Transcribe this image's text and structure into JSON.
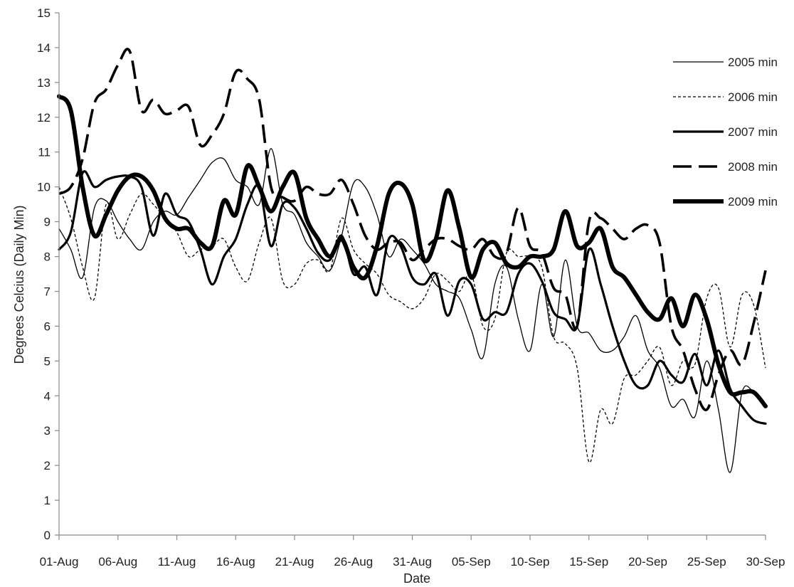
{
  "chart_data": {
    "type": "line",
    "xlabel": "Date",
    "ylabel": "Degrees Celcius (Daily Min)",
    "ylim": [
      0,
      15
    ],
    "xlim": [
      "01-Aug",
      "30-Sep"
    ],
    "y_ticks": [
      0,
      1,
      2,
      3,
      4,
      5,
      6,
      7,
      8,
      9,
      10,
      11,
      12,
      13,
      14,
      15
    ],
    "x_tick_labels": [
      "01-Aug",
      "06-Aug",
      "11-Aug",
      "16-Aug",
      "21-Aug",
      "26-Aug",
      "31-Aug",
      "05-Sep",
      "10-Sep",
      "15-Sep",
      "20-Sep",
      "25-Sep",
      "30-Sep"
    ],
    "grid": false,
    "legend_position": "right",
    "x_dates": [
      "01-Aug",
      "02-Aug",
      "03-Aug",
      "04-Aug",
      "05-Aug",
      "06-Aug",
      "07-Aug",
      "08-Aug",
      "09-Aug",
      "10-Aug",
      "11-Aug",
      "12-Aug",
      "13-Aug",
      "14-Aug",
      "15-Aug",
      "16-Aug",
      "17-Aug",
      "18-Aug",
      "19-Aug",
      "20-Aug",
      "21-Aug",
      "22-Aug",
      "23-Aug",
      "24-Aug",
      "25-Aug",
      "26-Aug",
      "27-Aug",
      "28-Aug",
      "29-Aug",
      "30-Aug",
      "31-Aug",
      "01-Sep",
      "02-Sep",
      "03-Sep",
      "04-Sep",
      "05-Sep",
      "06-Sep",
      "07-Sep",
      "08-Sep",
      "09-Sep",
      "10-Sep",
      "11-Sep",
      "12-Sep",
      "13-Sep",
      "14-Sep",
      "15-Sep",
      "16-Sep",
      "17-Sep",
      "18-Sep",
      "19-Sep",
      "20-Sep",
      "21-Sep",
      "22-Sep",
      "23-Sep",
      "24-Sep",
      "25-Sep",
      "26-Sep",
      "27-Sep",
      "28-Sep",
      "29-Sep",
      "30-Sep"
    ],
    "series": [
      {
        "name": "2005 min",
        "color": "#000000",
        "values": [
          8.8,
          8.2,
          7.4,
          9.4,
          9.6,
          9.0,
          8.5,
          8.2,
          9.0,
          9.3,
          9.2,
          9.7,
          10.2,
          10.7,
          10.8,
          10.2,
          10.0,
          9.5,
          11.1,
          9.5,
          9.2,
          8.4,
          8.0,
          7.6,
          8.6,
          10.1,
          10.0,
          9.2,
          8.0,
          8.5,
          8.2,
          7.8,
          7.2,
          7.0,
          6.8,
          5.9,
          5.1,
          7.2,
          7.7,
          6.2,
          5.3,
          7.2,
          5.7,
          7.9,
          6.0,
          5.8,
          5.3,
          5.3,
          5.7,
          6.3,
          5.3,
          4.8,
          3.7,
          3.9,
          3.4,
          5.0,
          3.6,
          1.8,
          4.1,
          4.1,
          3.7
        ]
      },
      {
        "name": "2006 min",
        "color": "#000000",
        "values": [
          10.0,
          9.1,
          7.7,
          6.8,
          9.5,
          8.5,
          9.2,
          9.8,
          9.5,
          9.1,
          8.7,
          8.0,
          8.2,
          8.3,
          8.5,
          7.7,
          7.3,
          8.4,
          9.1,
          7.3,
          7.2,
          7.8,
          7.9,
          7.6,
          9.1,
          8.2,
          7.8,
          7.5,
          6.9,
          6.7,
          6.5,
          6.8,
          7.5,
          7.3,
          7.0,
          7.5,
          6.0,
          6.2,
          8.1,
          8.0,
          8.0,
          7.7,
          5.7,
          5.5,
          4.8,
          2.1,
          3.6,
          3.2,
          4.5,
          4.6,
          5.0,
          5.4,
          4.3,
          5.0,
          4.9,
          6.8,
          7.1,
          5.4,
          6.9,
          6.6,
          4.8
        ]
      },
      {
        "name": "2007 min",
        "color": "#000000",
        "values": [
          8.2,
          8.7,
          10.4,
          10.0,
          10.2,
          10.3,
          10.3,
          10.0,
          8.6,
          9.8,
          9.2,
          9.0,
          8.2,
          7.2,
          8.0,
          8.5,
          9.5,
          10.0,
          8.3,
          9.5,
          9.4,
          8.8,
          8.1,
          7.9,
          8.6,
          7.5,
          7.7,
          6.9,
          8.5,
          8.3,
          7.4,
          7.2,
          7.5,
          6.3,
          7.3,
          7.2,
          6.2,
          6.4,
          6.4,
          7.5,
          7.8,
          7.3,
          6.4,
          6.2,
          6.0,
          8.2,
          7.2,
          6.0,
          5.0,
          4.3,
          4.3,
          5.0,
          4.6,
          4.4,
          5.2,
          4.3,
          5.3,
          4.2,
          3.7,
          3.3,
          3.2
        ]
      },
      {
        "name": "2008 min",
        "color": "#000000",
        "values": [
          9.8,
          10.0,
          10.8,
          12.4,
          12.8,
          13.5,
          13.9,
          12.2,
          12.5,
          12.1,
          12.2,
          12.3,
          11.2,
          11.5,
          12.1,
          13.3,
          13.1,
          12.5,
          10.0,
          9.7,
          9.6,
          10.0,
          9.8,
          9.8,
          10.2,
          9.5,
          8.6,
          8.2,
          8.4,
          8.4,
          7.9,
          8.2,
          8.5,
          8.5,
          8.3,
          8.2,
          8.5,
          8.0,
          8.1,
          9.4,
          8.3,
          8.1,
          7.1,
          6.9,
          6.0,
          9.0,
          9.1,
          8.8,
          8.5,
          8.8,
          8.9,
          8.4,
          6.0,
          5.3,
          4.2,
          3.6,
          4.6,
          5.3,
          4.9,
          6.1,
          7.6
        ]
      },
      {
        "name": "2009 min",
        "color": "#000000",
        "values": [
          12.6,
          12.2,
          10.0,
          8.6,
          9.2,
          9.9,
          10.3,
          10.3,
          9.9,
          9.1,
          8.8,
          8.8,
          8.4,
          8.3,
          9.6,
          9.2,
          10.6,
          10.0,
          9.3,
          10.0,
          10.4,
          9.1,
          8.5,
          8.0,
          8.5,
          7.7,
          7.4,
          8.3,
          9.8,
          10.1,
          9.5,
          7.9,
          8.5,
          9.9,
          8.8,
          7.4,
          8.2,
          8.4,
          7.8,
          7.7,
          8.0,
          8.0,
          8.2,
          9.3,
          8.3,
          8.4,
          8.8,
          7.7,
          7.4,
          6.9,
          6.4,
          6.2,
          6.8,
          6.0,
          6.9,
          6.2,
          4.9,
          4.1,
          4.1,
          4.1,
          3.7
        ]
      }
    ]
  }
}
